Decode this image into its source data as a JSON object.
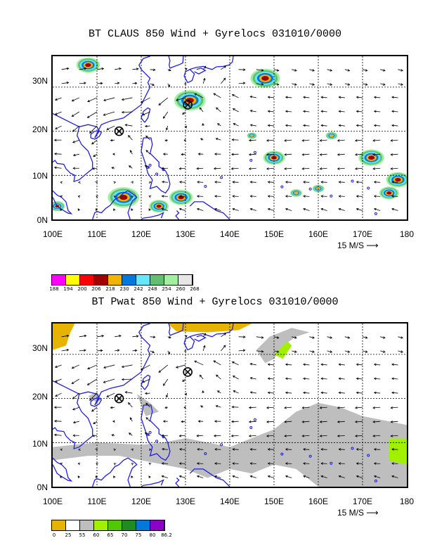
{
  "top": {
    "title": "BT CLAUS 850 Wind + Gyrelocs 031010/0000",
    "lat_labels": [
      "30N",
      "20N",
      "10N",
      "0N"
    ],
    "lon_labels": [
      "100E",
      "110E",
      "120E",
      "130E",
      "140E",
      "150E",
      "160E",
      "170E",
      "180"
    ],
    "ref_vector": "15 M/S",
    "colorbar": {
      "colors": [
        "#ff00ff",
        "#ffff00",
        "#ff0000",
        "#a00000",
        "#f0b400",
        "#0078dc",
        "#66e6ff",
        "#60c070",
        "#a0f0a0",
        "#e6e6e6"
      ],
      "labels": [
        "188",
        "194",
        "200",
        "206",
        "218",
        "230",
        "242",
        "248",
        "254",
        "260",
        "268"
      ]
    },
    "gyre_locations": [
      {
        "lon": 115,
        "lat": 20
      },
      {
        "lon": 130.5,
        "lat": 26
      }
    ],
    "cloud_blobs": [
      {
        "lon": 131,
        "lat": 27,
        "size": 1.6
      },
      {
        "lon": 148,
        "lat": 32,
        "size": 1.5
      },
      {
        "lon": 108,
        "lat": 35,
        "size": 1.2
      },
      {
        "lon": 116,
        "lat": 5,
        "size": 1.6
      },
      {
        "lon": 124,
        "lat": 3,
        "size": 1.0
      },
      {
        "lon": 129,
        "lat": 5,
        "size": 1.2
      },
      {
        "lon": 150,
        "lat": 14,
        "size": 1.1
      },
      {
        "lon": 172,
        "lat": 14,
        "size": 1.3
      },
      {
        "lon": 178,
        "lat": 9,
        "size": 1.2
      },
      {
        "lon": 176,
        "lat": 6,
        "size": 1.0
      },
      {
        "lon": 101,
        "lat": 3,
        "size": 0.8
      },
      {
        "lon": 155,
        "lat": 6,
        "size": 0.6
      },
      {
        "lon": 160,
        "lat": 7,
        "size": 0.6
      },
      {
        "lon": 163,
        "lat": 19,
        "size": 0.6
      },
      {
        "lon": 145,
        "lat": 19,
        "size": 0.5
      }
    ]
  },
  "bottom": {
    "title": "BT Pwat 850 Wind + Gyrelocs 031010/0000",
    "lat_labels": [
      "30N",
      "20N",
      "10N",
      "0N"
    ],
    "lon_labels": [
      "100E",
      "110E",
      "120E",
      "130E",
      "140E",
      "150E",
      "160E",
      "170E",
      "180"
    ],
    "ref_vector": "15 M/S",
    "colorbar": {
      "colors": [
        "#e6b400",
        "#ffffff",
        "#bebebe",
        "#a0f000",
        "#50c800",
        "#1e8c1e",
        "#0078dc",
        "#8c00c8"
      ],
      "labels": [
        "0",
        "25",
        "55",
        "60",
        "65",
        "70",
        "75",
        "80",
        "86.2"
      ]
    },
    "gyre_locations": [
      {
        "lon": 115,
        "lat": 20
      },
      {
        "lon": 130.5,
        "lat": 26
      }
    ]
  }
}
